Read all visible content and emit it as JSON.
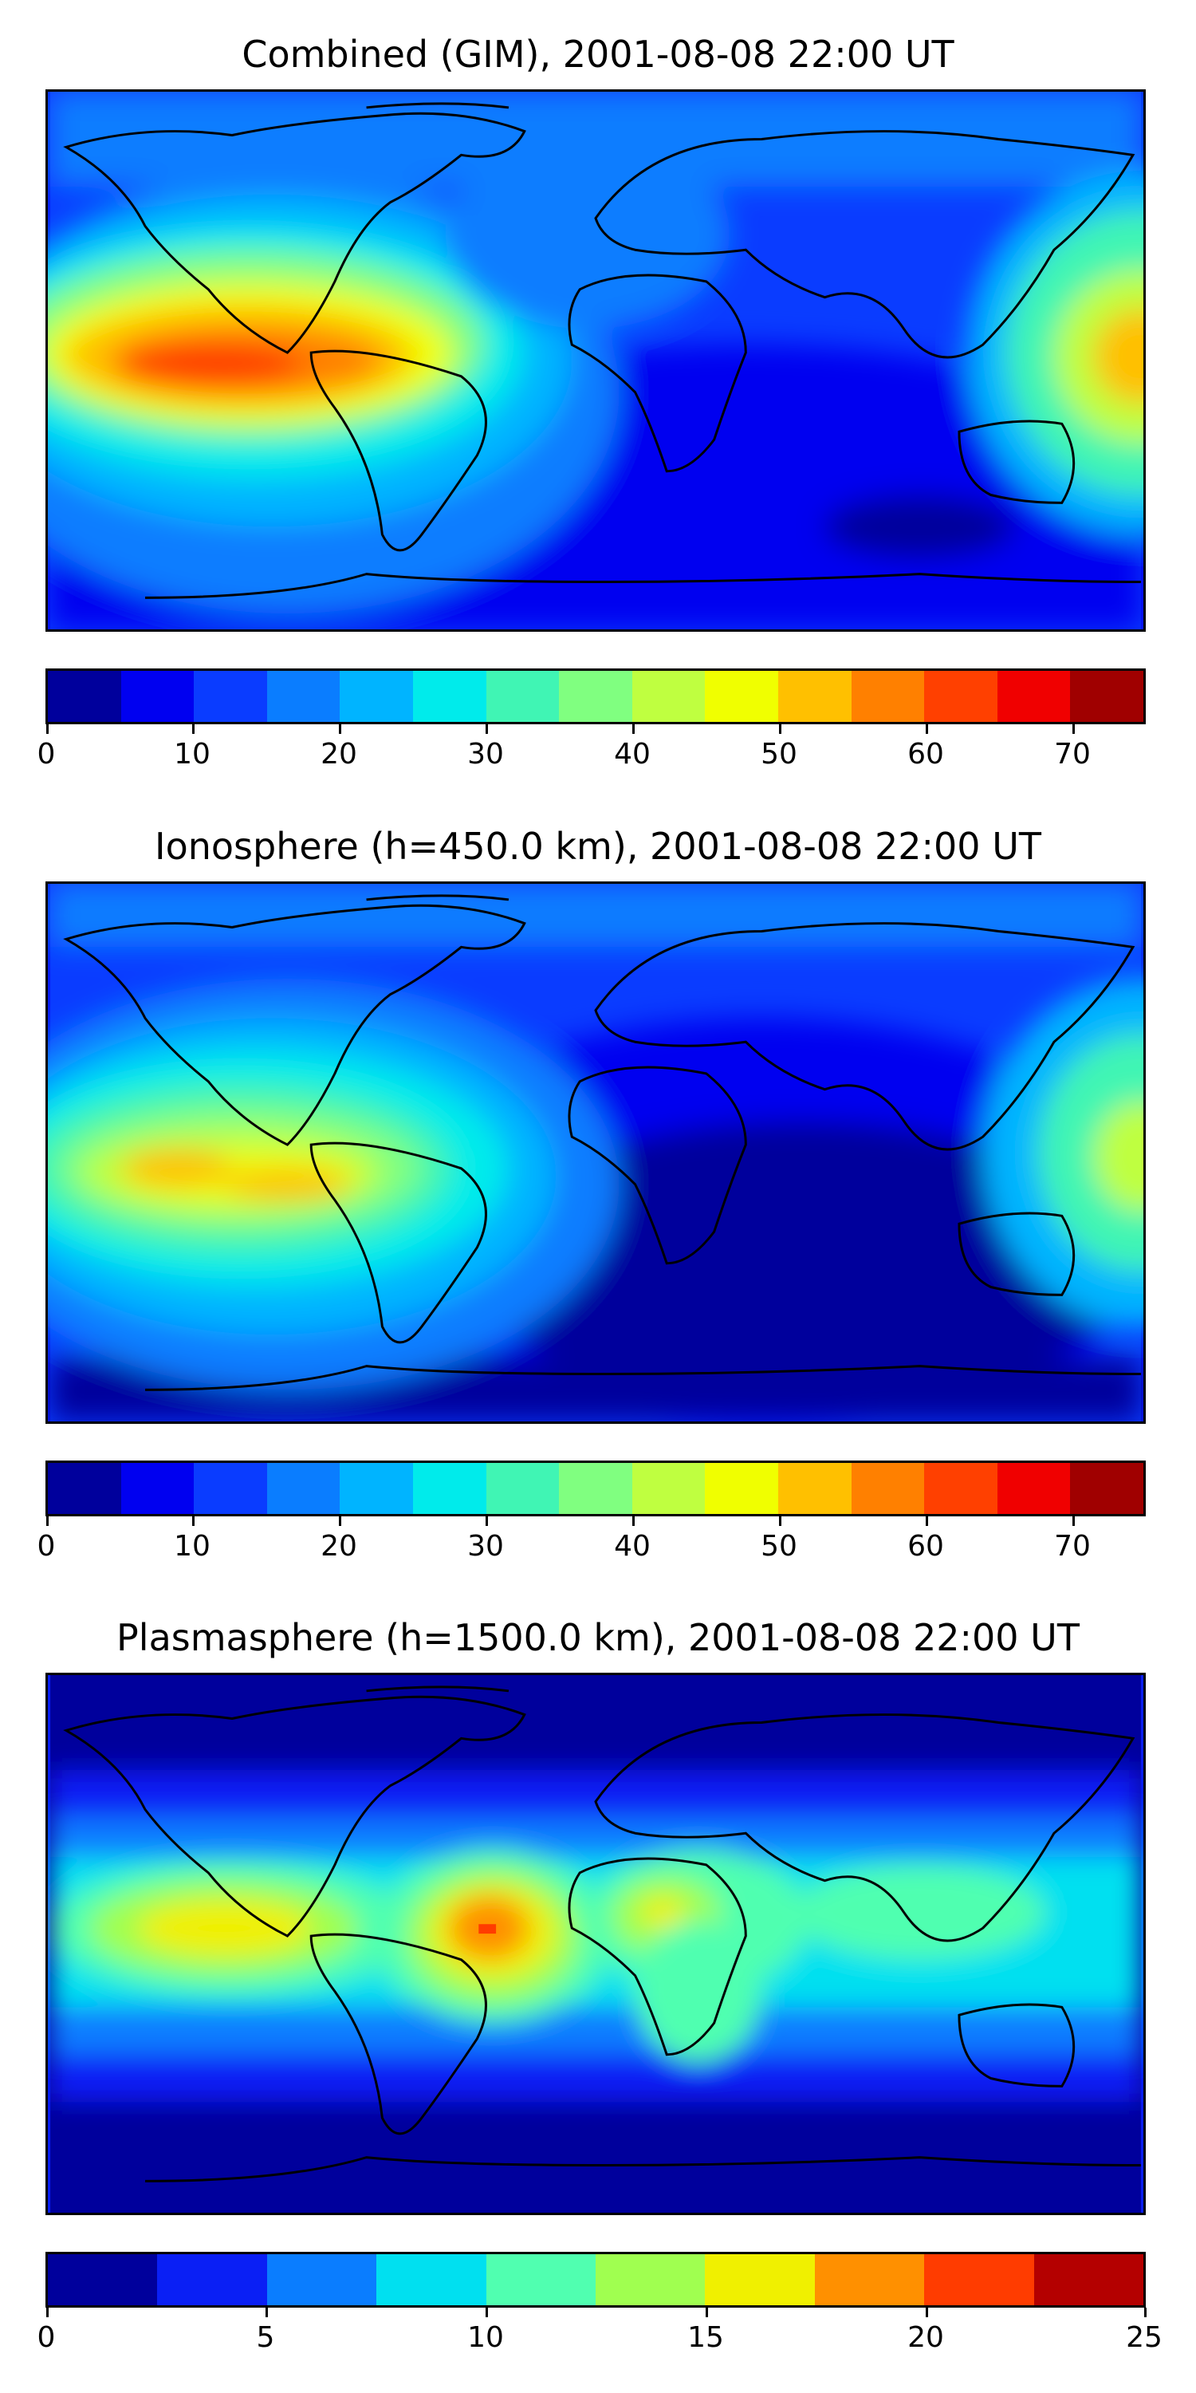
{
  "panels": [
    {
      "title": "Combined (GIM), 2001-08-08 22:00 UT",
      "base_color": "#0a1ff5",
      "colorbar": {
        "ticks": [
          "0",
          "10",
          "20",
          "30",
          "40",
          "50",
          "60",
          "70"
        ],
        "tick_values": [
          0,
          10,
          20,
          30,
          40,
          50,
          60,
          70
        ],
        "vmin": 0,
        "vmax": 75,
        "colors": [
          "#00009c",
          "#0000f0",
          "#0a3cff",
          "#0a7dff",
          "#00b4ff",
          "#00ebeb",
          "#40f5b4",
          "#80ff80",
          "#bfff40",
          "#f0ff00",
          "#ffc000",
          "#ff8000",
          "#ff4000",
          "#f00000",
          "#a00000"
        ]
      }
    },
    {
      "title": "Ionosphere  (h=450.0 km), 2001-08-08 22:00 UT",
      "base_color": "#0a1ff5",
      "colorbar": {
        "ticks": [
          "0",
          "10",
          "20",
          "30",
          "40",
          "50",
          "60",
          "70"
        ],
        "tick_values": [
          0,
          10,
          20,
          30,
          40,
          50,
          60,
          70
        ],
        "vmin": 0,
        "vmax": 75,
        "colors": [
          "#00009c",
          "#0000f0",
          "#0a3cff",
          "#0a7dff",
          "#00b4ff",
          "#00ebeb",
          "#40f5b4",
          "#80ff80",
          "#bfff40",
          "#f0ff00",
          "#ffc000",
          "#ff8000",
          "#ff4000",
          "#f00000",
          "#a00000"
        ]
      }
    },
    {
      "title": "Plasmasphere (h=1500.0 km), 2001-08-08 22:00 UT",
      "base_color": "#00009c",
      "colorbar": {
        "ticks": [
          "0",
          "5",
          "10",
          "15",
          "20",
          "25"
        ],
        "tick_values": [
          0,
          5,
          10,
          15,
          20,
          25
        ],
        "vmin": 0,
        "vmax": 25,
        "colors": [
          "#00009c",
          "#0a1ff5",
          "#0a7dff",
          "#00e0f0",
          "#50ffb0",
          "#a0ff50",
          "#f0f000",
          "#ff9000",
          "#ff3c00",
          "#b40000"
        ]
      }
    }
  ]
}
